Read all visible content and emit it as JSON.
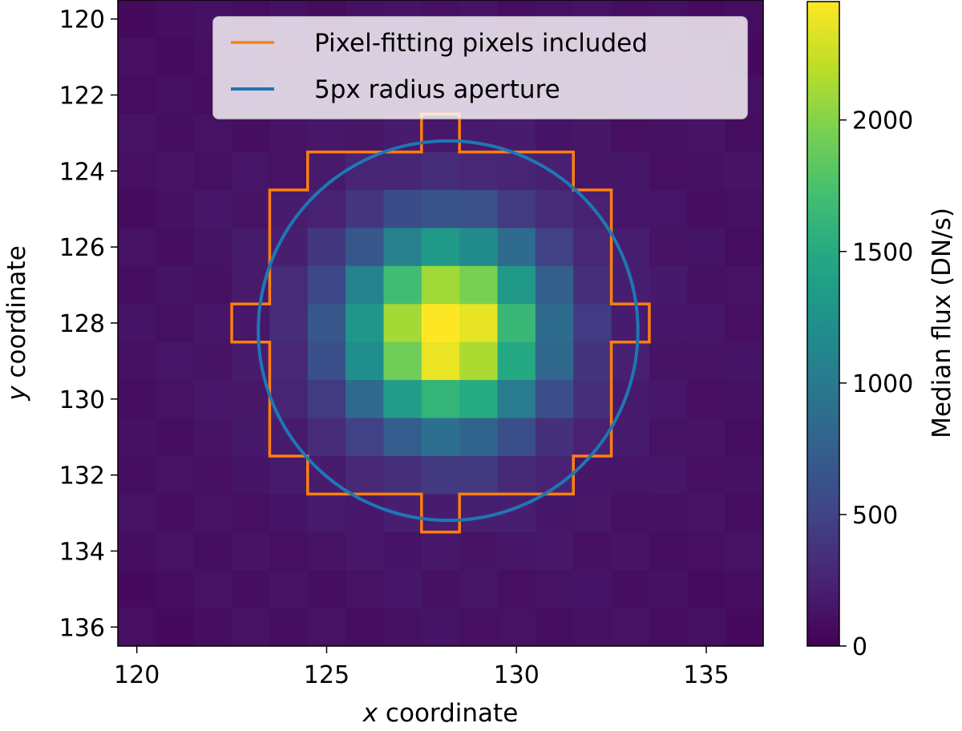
{
  "chart_data": {
    "type": "heatmap",
    "title": "",
    "xlabel_italic": "x",
    "xlabel_rest": " coordinate",
    "ylabel_italic": "y",
    "ylabel_rest": " coordinate",
    "xlim": [
      119.5,
      136.5
    ],
    "ylim": [
      136.5,
      119.5
    ],
    "xticks": [
      120,
      125,
      130,
      135
    ],
    "xtick_labels": [
      "120",
      "125",
      "130",
      "135"
    ],
    "yticks": [
      120,
      122,
      124,
      126,
      128,
      130,
      132,
      134,
      136
    ],
    "ytick_labels": [
      "120",
      "122",
      "124",
      "126",
      "128",
      "130",
      "132",
      "134",
      "136"
    ],
    "colormap": "viridis",
    "colorbar": {
      "label": "Median flux (DN/s)",
      "range": [
        0,
        2450
      ],
      "ticks": [
        0,
        500,
        1000,
        1500,
        2000
      ],
      "tick_labels": [
        "0",
        "500",
        "1000",
        "1500",
        "2000"
      ]
    },
    "source_center": [
      128.2,
      128.2
    ],
    "peak_flux": 2450,
    "background_flux": 60,
    "legend": {
      "position": "top-center",
      "entries": [
        {
          "label": "Pixel-fitting pixels included",
          "color": "#ff7f0e",
          "kind": "line"
        },
        {
          "label": "5px radius aperture",
          "color": "#1f77b4",
          "kind": "line"
        }
      ]
    },
    "aperture": {
      "center_x": 128.2,
      "center_y": 128.2,
      "radius": 5,
      "color": "#1f77b4"
    },
    "pixel_mask": {
      "color": "#ff7f0e",
      "rows": [
        {
          "y": 123,
          "x_min": 128,
          "x_max": 128
        },
        {
          "y": 124,
          "x_min": 125,
          "x_max": 131
        },
        {
          "y": 125,
          "x_min": 124,
          "x_max": 132
        },
        {
          "y": 126,
          "x_min": 124,
          "x_max": 132
        },
        {
          "y": 127,
          "x_min": 124,
          "x_max": 132
        },
        {
          "y": 128,
          "x_min": 123,
          "x_max": 133
        },
        {
          "y": 129,
          "x_min": 124,
          "x_max": 132
        },
        {
          "y": 130,
          "x_min": 124,
          "x_max": 132
        },
        {
          "y": 131,
          "x_min": 124,
          "x_max": 132
        },
        {
          "y": 132,
          "x_min": 125,
          "x_max": 131
        },
        {
          "y": 133,
          "x_min": 128,
          "x_max": 128
        }
      ]
    }
  }
}
